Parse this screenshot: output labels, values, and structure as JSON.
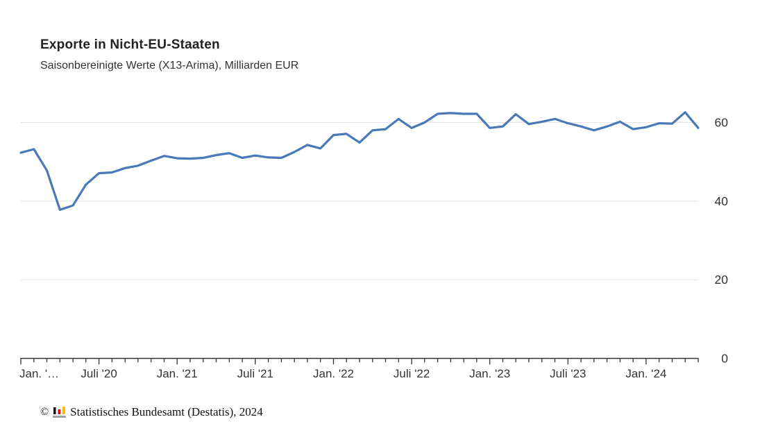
{
  "header": {
    "title": "Exporte in Nicht-EU-Staaten",
    "subtitle": "Saisonbereinigte Werte (X13-Arima), Milliarden EUR"
  },
  "footer": {
    "copyright_symbol": "©",
    "credit": "Statistisches Bundesamt (Destatis), 2024",
    "logo_colors": {
      "black": "#1a1a1a",
      "red": "#e30613",
      "gold": "#f6b900",
      "base_gray": "#a0a0a0"
    }
  },
  "chart_data": {
    "type": "line",
    "title": "Exporte in Nicht-EU-Staaten",
    "subtitle": "Saisonbereinigte Werte (X13-Arima), Milliarden EUR",
    "ylabel": "Milliarden EUR",
    "frequency": "monthly",
    "start_month": "Jan. 2020",
    "end_month": "Mai 2024",
    "values": [
      52.3,
      53.2,
      47.8,
      37.8,
      38.9,
      44.2,
      47.1,
      47.3,
      48.4,
      49.0,
      50.3,
      51.5,
      50.9,
      50.8,
      51.0,
      51.7,
      52.2,
      51.0,
      51.6,
      51.1,
      51.0,
      52.5,
      54.3,
      53.4,
      56.8,
      57.1,
      54.9,
      58.0,
      58.3,
      60.9,
      58.6,
      60.0,
      62.2,
      62.4,
      62.2,
      62.2,
      58.6,
      59.0,
      62.1,
      59.6,
      60.2,
      60.9,
      59.8,
      59.0,
      58.0,
      59.0,
      60.2,
      58.3,
      58.8,
      59.8,
      59.7,
      62.6,
      58.6
    ],
    "x_axis": {
      "tick_labels": [
        "Jan. '…",
        "Juli '20",
        "Jan. '21",
        "Juli '21",
        "Jan. '22",
        "Juli '22",
        "Jan. '23",
        "Juli '23",
        "Jan. '24"
      ],
      "tick_positions": [
        0,
        6,
        12,
        18,
        24,
        30,
        36,
        42,
        48
      ],
      "minor_ticks": "every month"
    },
    "y_axis": {
      "ticks": [
        0,
        20,
        40,
        60
      ],
      "position": "right",
      "ylim": [
        0,
        66
      ]
    },
    "grid": "horizontal",
    "legend": false,
    "line_color": "#4a79b8",
    "axis_color": "#333333",
    "grid_color": "#e6e6e6",
    "label_color": "#333333"
  }
}
